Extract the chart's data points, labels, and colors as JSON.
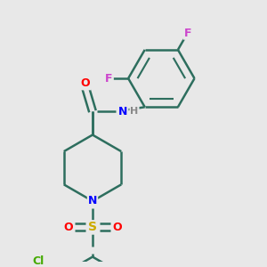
{
  "bg_color": "#e8e8e8",
  "bond_color": "#2d6e5e",
  "atom_colors": {
    "F": "#cc44cc",
    "O": "#ff0000",
    "N": "#0000ff",
    "H": "#888888",
    "S": "#ccaa00",
    "Cl": "#44aa00"
  },
  "bond_width": 1.8,
  "figsize": [
    3.0,
    3.0
  ],
  "dpi": 100
}
